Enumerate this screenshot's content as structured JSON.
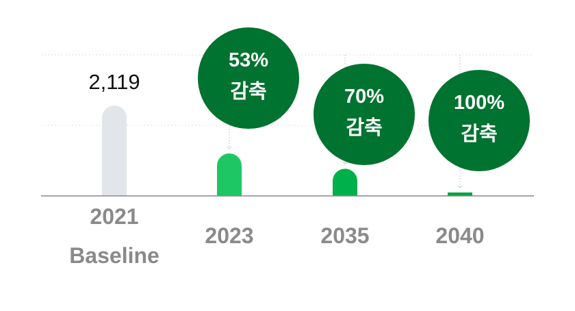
{
  "chart_data": {
    "type": "bar",
    "categories": [
      "2021",
      "2023",
      "2035",
      "2040"
    ],
    "category_sublabels": [
      "Baseline",
      "",
      "",
      ""
    ],
    "values": [
      2119,
      996,
      636,
      0
    ],
    "data_labels": [
      "2,119",
      "",
      "",
      ""
    ],
    "annotations": [
      {
        "category": "2023",
        "line1": "53%",
        "line2": "감축"
      },
      {
        "category": "2035",
        "line1": "70%",
        "line2": "감축"
      },
      {
        "category": "2040",
        "line1": "100%",
        "line2": "감축"
      }
    ],
    "ylim": [
      0,
      2119
    ],
    "grid": true,
    "colors": {
      "bars": [
        "#e2e6ea",
        "#1cc764",
        "#00b04a",
        "#00a33f"
      ],
      "bubble": "#007330",
      "axis": "#888888",
      "grid": "#dddddd"
    }
  }
}
